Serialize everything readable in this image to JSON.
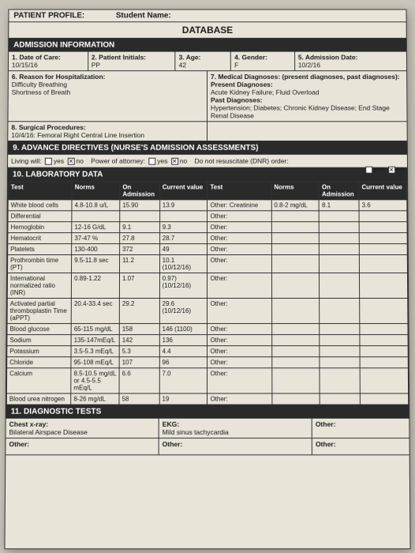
{
  "header": {
    "profile_label": "PATIENT PROFILE:",
    "student_label": "Student Name:",
    "database": "DATABASE"
  },
  "admission": {
    "section_title": "ADMISSION INFORMATION",
    "date_of_care_label": "1. Date of Care:",
    "date_of_care": "10/15/16",
    "initials_label": "2. Patient Initials:",
    "initials": "PP",
    "age_label": "3. Age:",
    "age": "42",
    "gender_label": "4. Gender:",
    "gender": "F",
    "adm_date_label": "5. Admission Date:",
    "adm_date": "10/2/16",
    "reason_label": "6. Reason for Hospitalization:",
    "reason_1": "Difficulty Breathing",
    "reason_2": "Shortness of Breath",
    "diag_label": "7. Medical Diagnoses: (present diagnoses, past diagnoses):",
    "present_label": "Present Diagnoses:",
    "present_text": "Acute Kidney Failure; Fluid Overload",
    "past_label": "Past Diagnoses:",
    "past_text": "Hypertension; Diabetes; Chronic Kidney Disease; End Stage Renal Disease",
    "surg_label": "8. Surgical Procedures:",
    "surg_text": "10/4/16: Femoral Right Central Line Insertion"
  },
  "directives": {
    "section_title": "9. ADVANCE DIRECTIVES (NURSE'S ADMISSION ASSESSMENTS)",
    "living_will": "Living will:",
    "yes": "yes",
    "no": "no",
    "poa": "Power of attorney:",
    "dnr": "Do not resuscitate (DNR) order:",
    "check": "✕"
  },
  "lab": {
    "section_title": "10. LABORATORY DATA",
    "cols": [
      "Test",
      "Norms",
      "On Admission",
      "Current value",
      "Test",
      "Norms",
      "On Admission",
      "Current value"
    ],
    "rows": [
      [
        "White blood cells",
        "4.8-10.8 u/L",
        "15.90",
        "13.9",
        "Other: Creatinine",
        "0.8-2 mg/dL",
        "8.1",
        "3.6"
      ],
      [
        "Differential",
        "",
        "",
        "",
        "Other:",
        "",
        "",
        ""
      ],
      [
        "Hemoglobin",
        "12-16 G/dL",
        "9.1",
        "9.3",
        "Other:",
        "",
        "",
        ""
      ],
      [
        "Hematocrit",
        "37-47 %",
        "27.8",
        "28.7",
        "Other:",
        "",
        "",
        ""
      ],
      [
        "Platelets",
        "130-400",
        "372",
        "49",
        "Other:",
        "",
        "",
        ""
      ],
      [
        "Prothrombin time (PT)",
        "9.5-11.8 sec",
        "11.2",
        "10.1 (10/12/16)",
        "Other:",
        "",
        "",
        ""
      ],
      [
        "International normalized ratio (INR)",
        "0.89-1.22",
        "1.07",
        "0.97) (10/12/16)",
        "Other:",
        "",
        "",
        ""
      ],
      [
        "Activated partial thromboplastin Time (aPPT)",
        "20.4-33.4 sec",
        "29.2",
        "29.6 (10/12/16)",
        "Other:",
        "",
        "",
        ""
      ],
      [
        "Blood glucose",
        "65-115 mg/dL",
        "158",
        "146 (1100)",
        "Other:",
        "",
        "",
        ""
      ],
      [
        "Sodium",
        "135-147mEq/L",
        "142",
        "136",
        "Other:",
        "",
        "",
        ""
      ],
      [
        "Potassium",
        "3.5-5.3 mEq/L",
        "5.3",
        "4.4",
        "Other:",
        "",
        "",
        ""
      ],
      [
        "Chloride",
        "95-108 mEq/L",
        "107",
        "96",
        "Other:",
        "",
        "",
        ""
      ],
      [
        "Calcium",
        "8.5-10.5 mg/dL or 4.5-5.5 mEq/L",
        "6.6",
        "7.0",
        "Other:",
        "",
        "",
        ""
      ],
      [
        "Blood urea nitrogen",
        "8-26 mg/dL",
        "58",
        "19",
        "Other:",
        "",
        "",
        ""
      ]
    ]
  },
  "diag": {
    "section_title": "11. DIAGNOSTIC TESTS",
    "chest_label": "Chest x-ray:",
    "chest_text": "Bilateral Airspace Disease",
    "ekg_label": "EKG:",
    "ekg_text": "Mild sinus tachycardia",
    "other_label": "Other:"
  }
}
